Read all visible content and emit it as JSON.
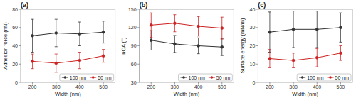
{
  "chart_data": [
    {
      "type": "line",
      "title": "(a)",
      "x_label": "Width (nm)",
      "y_label": "Adhesion force (nN)",
      "x": [
        200,
        300,
        400,
        500
      ],
      "xlim": [
        150,
        550
      ],
      "xticks": [
        200,
        300,
        400,
        500
      ],
      "ylim": [
        0,
        80
      ],
      "yticks": [
        0,
        20,
        40,
        60,
        80
      ],
      "grid": false,
      "legend": "lower right",
      "marker": "circle",
      "series": [
        {
          "name": "100 nm",
          "color": "#333333",
          "values": [
            51,
            54,
            53,
            55
          ],
          "errors": [
            18,
            15,
            13,
            12
          ]
        },
        {
          "name": "50 nm",
          "color": "#cc2222",
          "values": [
            23,
            21,
            24,
            29
          ],
          "errors": [
            8,
            10,
            9,
            7
          ]
        }
      ]
    },
    {
      "type": "line",
      "title": "(b)",
      "x_label": "Width (nm)",
      "y_label": "nCA (°)",
      "x": [
        200,
        300,
        400,
        500
      ],
      "xlim": [
        150,
        550
      ],
      "xticks": [
        200,
        300,
        400,
        500
      ],
      "ylim": [
        30,
        150
      ],
      "yticks": [
        30,
        60,
        90,
        120,
        150
      ],
      "grid": false,
      "legend": "lower right",
      "marker": "circle",
      "series": [
        {
          "name": "100 nm",
          "color": "#333333",
          "values": [
            99,
            93,
            90,
            88
          ],
          "errors": [
            16,
            14,
            13,
            14
          ]
        },
        {
          "name": "50 nm",
          "color": "#cc2222",
          "values": [
            124,
            127,
            122,
            119
          ],
          "errors": [
            20,
            14,
            16,
            18
          ]
        }
      ]
    },
    {
      "type": "line",
      "title": "(c)",
      "x_label": "Width (nm)",
      "y_label": "Surface energy (mN/m)",
      "x": [
        200,
        300,
        400,
        500
      ],
      "xlim": [
        150,
        550
      ],
      "xticks": [
        200,
        300,
        400,
        500
      ],
      "ylim": [
        0,
        40
      ],
      "yticks": [
        0,
        10,
        20,
        30,
        40
      ],
      "grid": false,
      "legend": "lower right",
      "marker": "circle",
      "series": [
        {
          "name": "100 nm",
          "color": "#333333",
          "values": [
            27.5,
            29,
            29,
            30
          ],
          "errors": [
            11,
            10,
            10,
            8
          ]
        },
        {
          "name": "50 nm",
          "color": "#cc2222",
          "values": [
            13,
            12,
            13.5,
            16
          ],
          "errors": [
            5,
            4,
            5,
            4
          ]
        }
      ]
    }
  ]
}
